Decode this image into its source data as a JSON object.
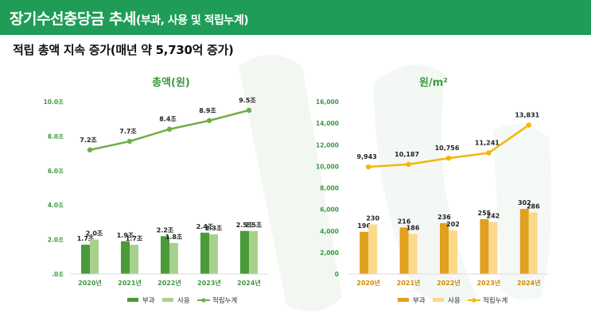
{
  "header": {
    "title_main": "장기수선충당금 추세",
    "title_sub": "(부과, 사용 및 적립누계)"
  },
  "subtitle": "적립 총액 지속 증가(매년 약 5,730억 증가)",
  "colors": {
    "header_bg": "#1f9d58",
    "left_accent": "#3b9a3e",
    "right_accent": "#e8a60f"
  },
  "chart_data": [
    {
      "type": "bar",
      "title": "총액(원)",
      "categories": [
        "2020년",
        "2021년",
        "2022년",
        "2023년",
        "2024년"
      ],
      "ylim": [
        0,
        10
      ],
      "yticks": [
        ".0조",
        "2.0조",
        "4.0조",
        "6.0조",
        "8.0조",
        "10.0조"
      ],
      "series": [
        {
          "name": "부과",
          "kind": "bar",
          "values": [
            1.7,
            1.9,
            2.2,
            2.4,
            2.5
          ],
          "labels": [
            "1.7조",
            "1.9조",
            "2.2조",
            "2.4조",
            "2.5조"
          ],
          "color": "#4a9a3a"
        },
        {
          "name": "사용",
          "kind": "bar",
          "values": [
            2.0,
            1.7,
            1.8,
            2.3,
            2.5
          ],
          "labels": [
            "2.0조",
            "1.7조",
            "1.8조",
            "2.3조",
            "2.5조"
          ],
          "color": "#a9d18e"
        },
        {
          "name": "적립누계",
          "kind": "line",
          "values": [
            7.2,
            7.7,
            8.4,
            8.9,
            9.5
          ],
          "labels": [
            "7.2조",
            "7.7조",
            "8.4조",
            "8.9조",
            "9.5조"
          ],
          "color": "#70ad47"
        }
      ],
      "legend": "bottom",
      "grid": false
    },
    {
      "type": "bar",
      "title": "원/m²",
      "categories": [
        "2020년",
        "2021년",
        "2022년",
        "2023년",
        "2024년"
      ],
      "ylim": [
        0,
        16000
      ],
      "yticks": [
        "0",
        "2,000",
        "4,000",
        "6,000",
        "8,000",
        "10,000",
        "12,000",
        "14,000",
        "16,000"
      ],
      "series": [
        {
          "name": "부과",
          "kind": "bar",
          "values": [
            196,
            216,
            236,
            255,
            302
          ],
          "labels": [
            "196",
            "216",
            "236",
            "255",
            "302"
          ],
          "color": "#e0a020"
        },
        {
          "name": "사용",
          "kind": "bar",
          "values": [
            230,
            186,
            202,
            242,
            286
          ],
          "labels": [
            "230",
            "186",
            "202",
            "242",
            "286"
          ],
          "color": "#fbd98a"
        },
        {
          "name": "적립누계",
          "kind": "line",
          "values": [
            9943,
            10187,
            10756,
            11241,
            13831
          ],
          "labels": [
            "9,943",
            "10,187",
            "10,756",
            "11,241",
            "13,831"
          ],
          "color": "#f2b705"
        }
      ],
      "legend": "bottom",
      "grid": false
    }
  ]
}
